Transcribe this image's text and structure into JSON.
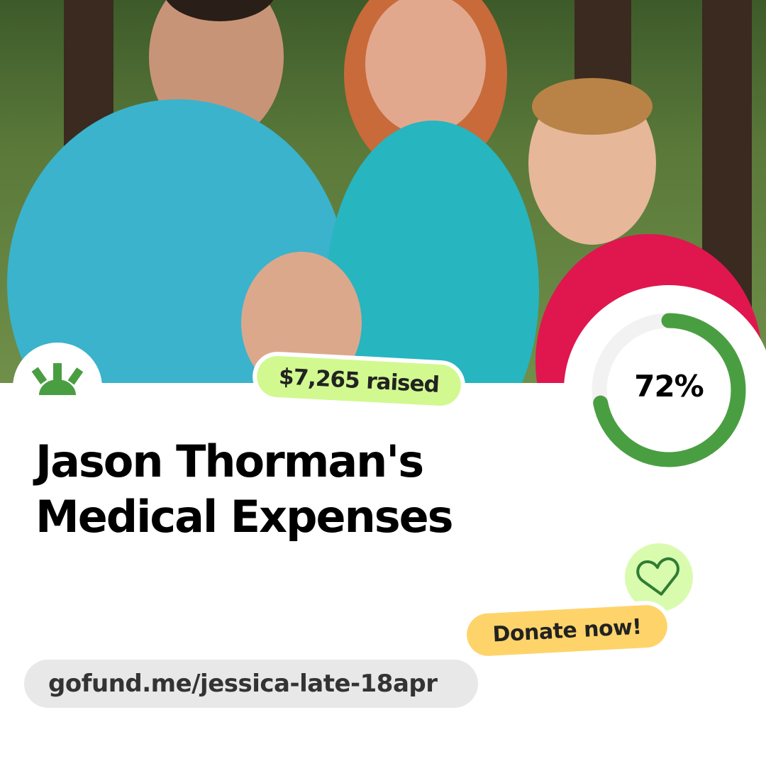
{
  "campaign": {
    "title": "Jason Thorman's Medical Expenses",
    "raised_label": "$7,265 raised",
    "progress_percent": 72,
    "progress_label": "72%",
    "donate_label": "Donate now!",
    "url": "gofund.me/jessica-late-18apr"
  },
  "icons": {
    "logo": "gofundme-sunrise-logo",
    "heart": "heart-icon"
  },
  "colors": {
    "brand_green": "#4a9e42",
    "raised_badge": "#d1f990",
    "donate_badge": "#fed46a",
    "heart_circle": "#d9fbae",
    "ring_track": "#f2f2f2",
    "url_pill": "#e8e8e8"
  }
}
